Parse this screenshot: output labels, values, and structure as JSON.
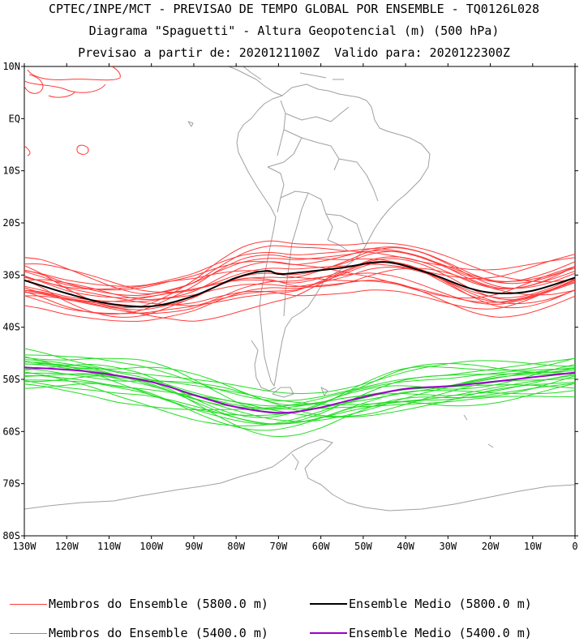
{
  "title_line1": "CPTEC/INPE/MCT - PREVISAO DE TEMPO GLOBAL POR ENSEMBLE - TQ0126L028",
  "title_line2": "Diagrama \"Spaguetti\" - Altura Geopotencial (m) (500 hPa)",
  "title_line3": "Previsao a partir de: 2020121100Z  Valido para: 2020122300Z",
  "lat_labels": [
    "10N",
    "EQ",
    "10S",
    "20S",
    "30S",
    "40S",
    "50S",
    "60S",
    "70S",
    "80S"
  ],
  "lon_labels": [
    "130W",
    "120W",
    "110W",
    "100W",
    "90W",
    "80W",
    "70W",
    "60W",
    "50W",
    "40W",
    "30W",
    "20W",
    "10W",
    "0"
  ],
  "colors": {
    "member_5800": "#ff3a3a",
    "mean_5800": "#000000",
    "member_5400": "#22dd22",
    "mean_5400": "#9a00c8",
    "coast": "#a0a0a0"
  },
  "legend": {
    "member_5800": "Membros do Ensemble (5800.0 m)",
    "mean_5800": "Ensemble Medio (5800.0 m)",
    "member_5400": "Membros do Ensemble (5400.0 m)",
    "mean_5400": "Ensemble Medio (5400.0 m)"
  },
  "chart_data": {
    "type": "line",
    "x_range_lon": [
      -130,
      0
    ],
    "y_range_lat": [
      -80,
      10
    ],
    "mean_5800_lat": [
      [
        -130,
        -31
      ],
      [
        -120,
        -33.5
      ],
      [
        -110,
        -35.5
      ],
      [
        -100,
        -36
      ],
      [
        -90,
        -34
      ],
      [
        -80,
        -30.5
      ],
      [
        -73,
        -29.2
      ],
      [
        -70,
        -29.8
      ],
      [
        -65,
        -29.5
      ],
      [
        -55,
        -28.6
      ],
      [
        -45,
        -27.5
      ],
      [
        -35,
        -29.5
      ],
      [
        -25,
        -32.5
      ],
      [
        -18,
        -33.5
      ],
      [
        -10,
        -33
      ],
      [
        0,
        -30.5
      ]
    ],
    "mean_5400_lat": [
      [
        -130,
        -47.7
      ],
      [
        -115,
        -48.5
      ],
      [
        -100,
        -50.5
      ],
      [
        -90,
        -53
      ],
      [
        -80,
        -55.3
      ],
      [
        -70,
        -56.4
      ],
      [
        -62,
        -55.7
      ],
      [
        -50,
        -53.4
      ],
      [
        -40,
        -51.8
      ],
      [
        -30,
        -51.3
      ],
      [
        -20,
        -50.5
      ],
      [
        -10,
        -49.6
      ],
      [
        0,
        -48.7
      ]
    ]
  }
}
